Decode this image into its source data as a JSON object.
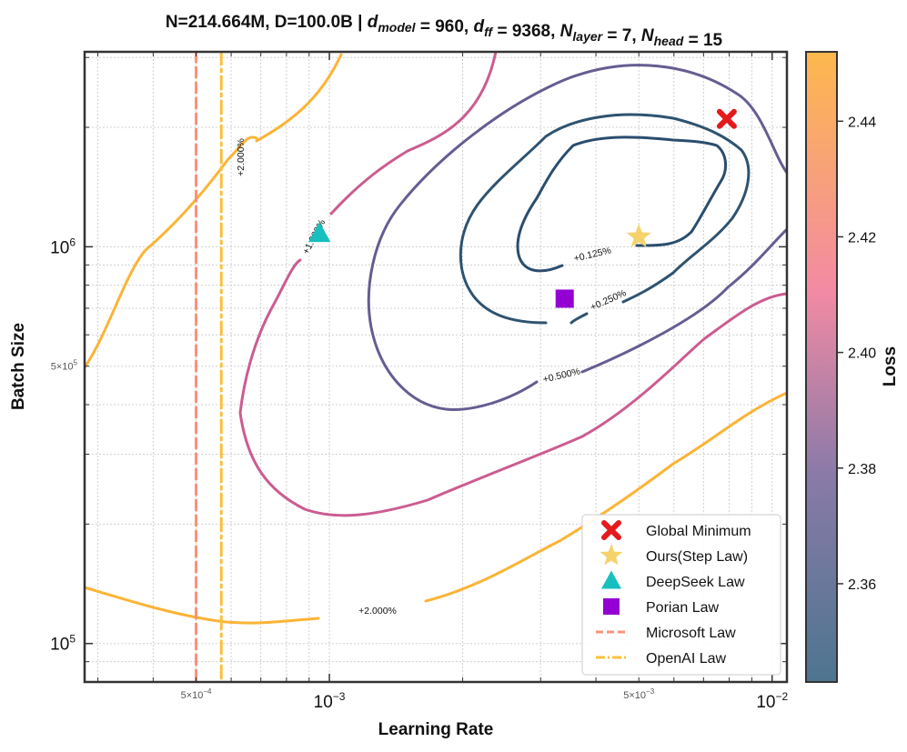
{
  "title_prefix": "N=214.664M, D=100.0B | ",
  "title_parts": [
    {
      "t": "d",
      "i": true
    },
    {
      "t": "model",
      "sub": true,
      "i": true
    },
    {
      "t": " = 960, "
    },
    {
      "t": "d",
      "i": true
    },
    {
      "t": "ff",
      "sub": true,
      "i": true
    },
    {
      "t": " = 9368, "
    },
    {
      "t": "N",
      "i": true
    },
    {
      "t": "layer",
      "sub": true,
      "i": true
    },
    {
      "t": " = 7, "
    },
    {
      "t": "N",
      "i": true
    },
    {
      "t": "head",
      "sub": true,
      "i": true
    },
    {
      "t": " = 15"
    }
  ],
  "xlabel": "Learning Rate",
  "ylabel": "Batch Size",
  "colorbar_label": "Loss",
  "x_major_ticks": [
    "10",
    "10"
  ],
  "x_major_exp": [
    "−3",
    "−2"
  ],
  "x_minor_labels": [
    "5×10",
    "5×10"
  ],
  "x_minor_exp": [
    "−4",
    "−3"
  ],
  "y_major_ticks": [
    "10",
    "10"
  ],
  "y_major_exp": [
    "5",
    "6"
  ],
  "y_minor_label": "5×10",
  "y_minor_exp": "5",
  "cbar_ticks": [
    "2.36",
    "2.38",
    "2.40",
    "2.42",
    "2.44"
  ],
  "contour_labels": {
    "c0125": "+0.125%",
    "c0250": "+0.250%",
    "c0500": "+0.500%",
    "c1000": "+1.000%",
    "c2000a": "+2.000%",
    "c2000b": "+2.000%"
  },
  "legend": [
    {
      "label": "Global Minimum",
      "marker": "x-icon",
      "color": "#e41a1c"
    },
    {
      "label": "Ours(Step Law)",
      "marker": "star-icon",
      "color": "#f6d26b"
    },
    {
      "label": "DeepSeek Law",
      "marker": "triangle-icon",
      "color": "#17bfbf"
    },
    {
      "label": "Porian Law",
      "marker": "square-icon",
      "color": "#9400d3"
    },
    {
      "label": "Microsoft Law",
      "marker": "dashed-line-icon",
      "color": "#f8917b"
    },
    {
      "label": "OpenAI Law",
      "marker": "dashdot-line-icon",
      "color": "#fbc03d"
    }
  ],
  "colors": {
    "c0125": "#2a4d6e",
    "c0250": "#2e5370",
    "c0500": "#675c91",
    "c1000": "#cb5c91",
    "c2000": "#fbb437",
    "microsoft": "#f8917b",
    "openai": "#fbc03d"
  },
  "chart_data": {
    "type": "contour",
    "x_scale": "log",
    "y_scale": "log",
    "xlim": [
      0.00028,
      0.0108
    ],
    "ylim": [
      80000,
      3100000
    ],
    "points": {
      "global_minimum": {
        "lr": 0.0079,
        "bs": 2100000
      },
      "step_law": {
        "lr": 0.005,
        "bs": 1060000
      },
      "deepseek_law": {
        "lr": 0.00095,
        "bs": 1080000
      },
      "porian_law": {
        "lr": 0.0034,
        "bs": 740000
      }
    },
    "vlines": {
      "microsoft_law_lr": 0.0005,
      "openai_law_lr": 0.00057
    },
    "colorbar": {
      "range": [
        2.343,
        2.452
      ],
      "ticks": [
        2.36,
        2.38,
        2.4,
        2.42,
        2.44
      ]
    },
    "contour_levels": [
      "+0.125%",
      "+0.250%",
      "+0.500%",
      "+1.000%",
      "+2.000%"
    ]
  }
}
